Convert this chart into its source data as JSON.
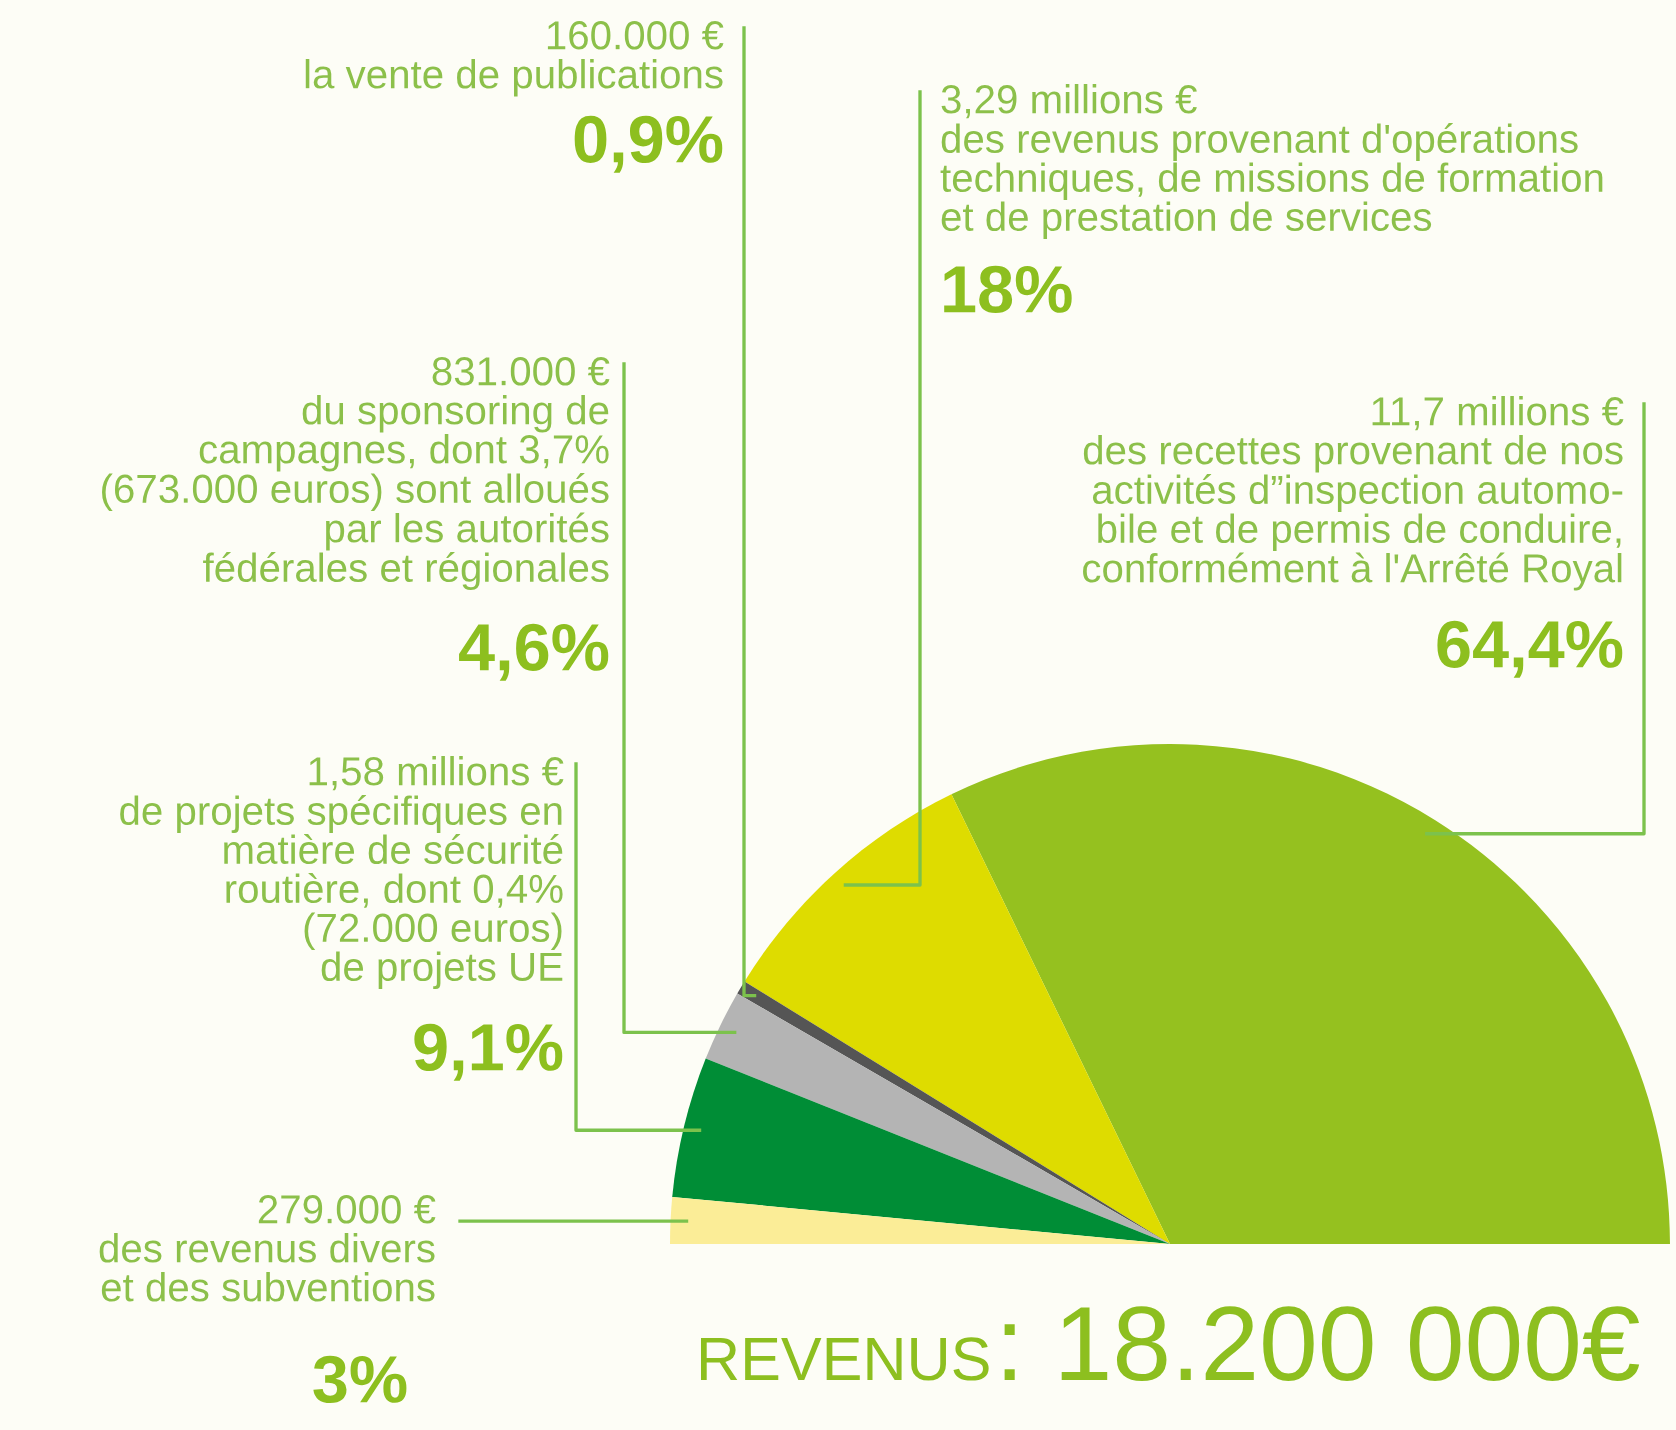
{
  "chart_data": {
    "type": "pie",
    "title": "REVENUS: 18.200 000€",
    "categories": [
      "11,7 millions €\ndes recettes provenant de nos\nactivités d”inspection automo-\nbile et de permis de conduire,\nconformément à l'Arrêté Royal",
      "3,29 millions €\ndes revenus provenant d'opérations\ntechniques, de missions de formation\net de prestation de services",
      "160.000 €\nla vente de publications",
      "831.000 €\ndu sponsoring de\ncampagnes, dont 3,7%\n(673.000 euros) sont alloués\npar les autorités\nfédérales et régionales",
      "1,58 millions €\nde projets spécifiques en\nmatière de sécurité\nroutière, dont 0,4%\n(72.000 euros)\nde projets UE",
      "279.000 €\ndes revenus divers\net des subventions"
    ],
    "values": [
      64.4,
      18,
      0.9,
      4.6,
      9.1,
      3
    ],
    "value_labels": [
      "64,4%",
      "18%",
      "0,9%",
      "4,6%",
      "9,1%",
      "3%"
    ],
    "colors": [
      "#95c11f",
      "#dedc00",
      "#555555",
      "#b4b4b4",
      "#008d36",
      "#fbed97"
    ]
  }
}
